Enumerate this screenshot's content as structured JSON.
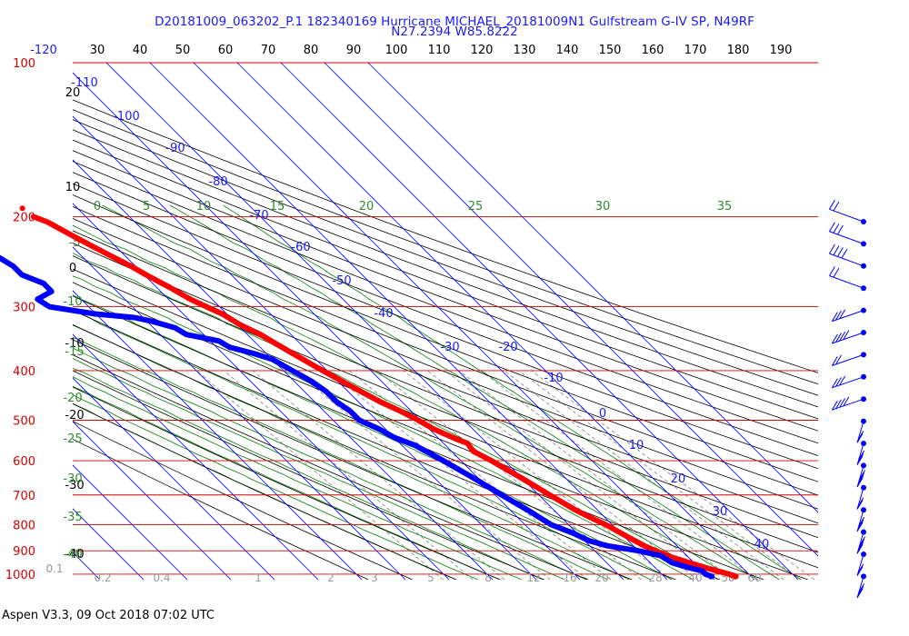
{
  "title_line1": "D20181009_063202_P.1 182340169 Hurricane MICHAEL_20181009N1 Gulfstream G-IV SP, N49RF",
  "title_line2": "N27.2394 W85.8222",
  "footer": "Aspen V3.3, 09 Oct 2018  07:02 UTC",
  "colors": {
    "isobar": "#d40000",
    "temperature": "#ff0000",
    "dewpoint": "#0000ff",
    "isotherm": "#0000ff",
    "dry_adiabat": "#000000",
    "moist_adiabat": "#008000",
    "mixing_ratio": "#808080",
    "barb": "#0000ff"
  },
  "chart_data": {
    "type": "skew-t log-p sounding",
    "pressure_axis": {
      "ticks": [
        "100",
        "200",
        "300",
        "400",
        "500",
        "600",
        "700",
        "800",
        "900",
        "1000"
      ],
      "range_hPa": [
        100,
        1000
      ],
      "scale": "log"
    },
    "top_temperature_ticks": [
      "-120",
      "30",
      "40",
      "50",
      "60",
      "70",
      "80",
      "90",
      "100",
      "110",
      "120",
      "130",
      "140",
      "150",
      "160",
      "170",
      "180",
      "190"
    ],
    "isotherm_labels": [
      "-110",
      "-100",
      "-90",
      "-80",
      "-70",
      "-60",
      "-50",
      "-40",
      "-30",
      "-20",
      "-10",
      "0",
      "10",
      "20",
      "30",
      "40"
    ],
    "dry_adiabat_labels": [
      "20",
      "10",
      "0",
      "-10",
      "-20",
      "-30",
      "-40"
    ],
    "moist_adiabat_left_labels": [
      "-5",
      "-10",
      "-15",
      "-20",
      "-25",
      "-30",
      "-35",
      "-40"
    ],
    "moist_adiabat_top_labels": [
      "0",
      "5",
      "10",
      "15",
      "20",
      "25",
      "30",
      "35"
    ],
    "mixing_ratio_labels": [
      "0.1",
      "0.2",
      "0.4",
      "1",
      "2",
      "3",
      "5",
      "8",
      "12",
      "16",
      "20",
      "28",
      "40",
      "50",
      "60"
    ],
    "series": [
      {
        "name": "temperature",
        "points": [
          [
            200,
            -52
          ],
          [
            205,
            -50
          ],
          [
            210,
            -49
          ],
          [
            220,
            -47
          ],
          [
            230,
            -45
          ],
          [
            240,
            -43
          ],
          [
            250,
            -41
          ],
          [
            260,
            -39.5
          ],
          [
            275,
            -37
          ],
          [
            290,
            -35
          ],
          [
            300,
            -33
          ],
          [
            310,
            -31
          ],
          [
            325,
            -29.5
          ],
          [
            340,
            -27
          ],
          [
            350,
            -26
          ],
          [
            370,
            -24
          ],
          [
            390,
            -22
          ],
          [
            400,
            -21
          ],
          [
            420,
            -19
          ],
          [
            440,
            -17
          ],
          [
            460,
            -15
          ],
          [
            480,
            -12.5
          ],
          [
            500,
            -10.5
          ],
          [
            520,
            -9
          ],
          [
            545,
            -6
          ],
          [
            555,
            -4.5
          ],
          [
            575,
            -5
          ],
          [
            600,
            -3
          ],
          [
            650,
            0
          ],
          [
            700,
            2.5
          ],
          [
            750,
            5
          ],
          [
            780,
            7
          ],
          [
            800,
            8.5
          ],
          [
            850,
            11
          ],
          [
            880,
            12.5
          ],
          [
            900,
            14
          ],
          [
            925,
            16
          ],
          [
            950,
            19
          ],
          [
            975,
            22
          ],
          [
            1000,
            25.5
          ],
          [
            1010,
            26.5
          ]
        ]
      },
      {
        "name": "dewpoint",
        "points": [
          [
            225,
            -72
          ],
          [
            235,
            -70
          ],
          [
            250,
            -68
          ],
          [
            260,
            -68
          ],
          [
            270,
            -65
          ],
          [
            280,
            -65
          ],
          [
            290,
            -70
          ],
          [
            300,
            -69
          ],
          [
            310,
            -60
          ],
          [
            315,
            -52
          ],
          [
            320,
            -49
          ],
          [
            330,
            -45
          ],
          [
            340,
            -44
          ],
          [
            350,
            -38
          ],
          [
            360,
            -37
          ],
          [
            370,
            -33
          ],
          [
            380,
            -30
          ],
          [
            400,
            -28
          ],
          [
            420,
            -26
          ],
          [
            440,
            -25
          ],
          [
            460,
            -25
          ],
          [
            480,
            -24
          ],
          [
            500,
            -24
          ],
          [
            520,
            -21.5
          ],
          [
            540,
            -20
          ],
          [
            560,
            -17
          ],
          [
            600,
            -14
          ],
          [
            650,
            -11
          ],
          [
            700,
            -8.5
          ],
          [
            750,
            -6
          ],
          [
            800,
            -4
          ],
          [
            830,
            -1
          ],
          [
            860,
            1
          ],
          [
            880,
            4
          ],
          [
            900,
            10
          ],
          [
            920,
            14
          ],
          [
            950,
            15
          ],
          [
            970,
            17.5
          ],
          [
            985,
            20
          ],
          [
            1000,
            20
          ],
          [
            1010,
            21
          ]
        ]
      }
    ],
    "wind_barbs_hPa": [
      200,
      250,
      300,
      350,
      400,
      450,
      500,
      550,
      600,
      650,
      700,
      750,
      800,
      850,
      900,
      950,
      1000
    ]
  }
}
